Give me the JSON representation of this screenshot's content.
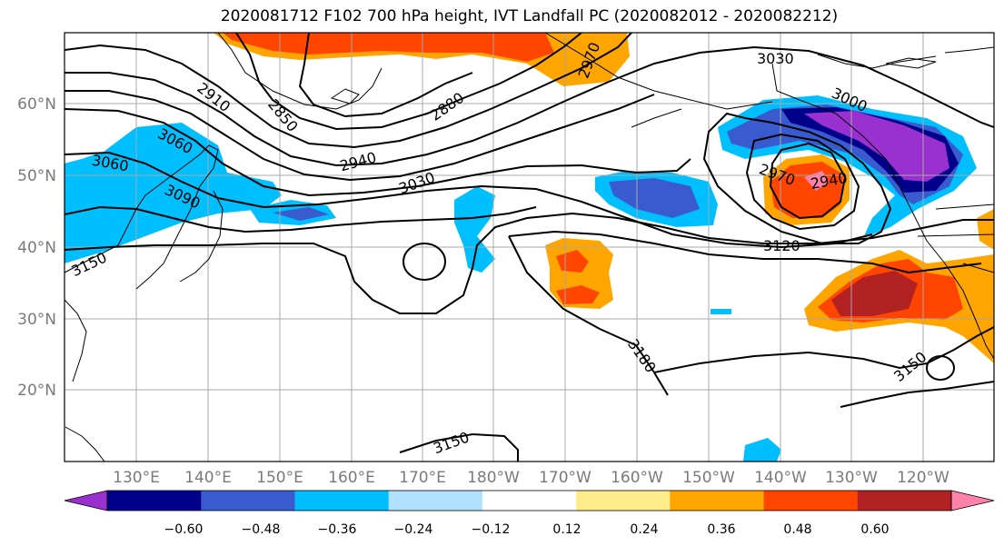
{
  "title": "2020081712 F102 700 hPa height, IVT Landfall PC (2020082012 - 2020082212)",
  "lat_labels": [
    "60°N",
    "50°N",
    "40°N",
    "30°N",
    "20°N"
  ],
  "lon_labels": [
    "130°E",
    "140°E",
    "150°E",
    "160°E",
    "170°E",
    "180°W",
    "170°W",
    "160°W",
    "150°W",
    "140°W",
    "130°W",
    "120°W"
  ],
  "contour_labels": [
    "2910",
    "2850",
    "3060",
    "2880",
    "2940",
    "3060",
    "3030",
    "3090",
    "2970",
    "3030",
    "3000",
    "2970",
    "2940",
    "3120",
    "3150",
    "3180",
    "3150",
    "3150"
  ],
  "colorbar": {
    "tick_labels": [
      "−0.60",
      "−0.48",
      "−0.36",
      "−0.24",
      "−0.12",
      "0.12",
      "0.24",
      "0.36",
      "0.48",
      "0.60"
    ],
    "colors": [
      "#9b30d0",
      "#00008b",
      "#3a5bcf",
      "#00bfff",
      "#b0e2ff",
      "#ffffff",
      "#ffec8b",
      "#ffa500",
      "#ff4500",
      "#b22222",
      "#ff82ab"
    ]
  }
}
